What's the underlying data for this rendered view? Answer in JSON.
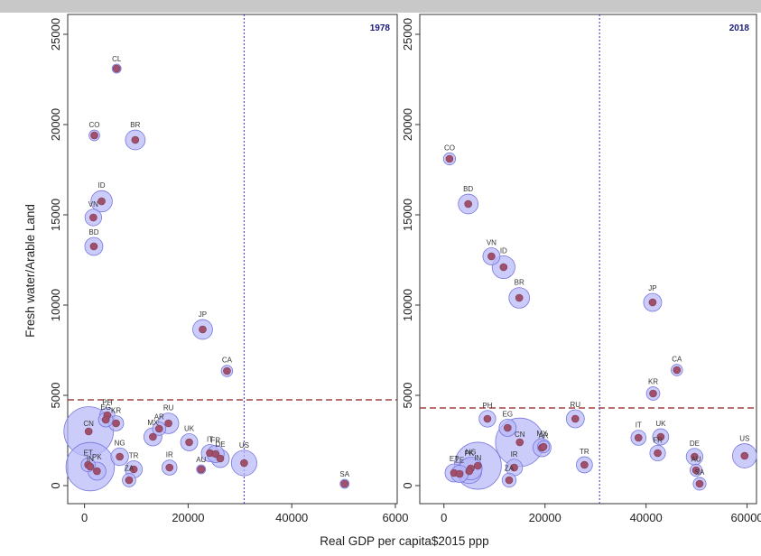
{
  "chart_data": {
    "type": "scatter",
    "xlabel": "Real GDP per capita$2015 ppp",
    "ylabel": "Fresh water/Arable Land",
    "colors": {
      "bubble_fill": "#b8b8f8",
      "bubble_stroke": "#7777dd",
      "point": "#a0506c",
      "threshold_line": "#a04040",
      "reference_line": "#3030c8"
    },
    "panels": [
      {
        "title": "1978",
        "xlim": [
          -1500,
          60000
        ],
        "ylim": [
          -500,
          26000
        ],
        "xticks": [
          "0",
          "20000",
          "40000",
          "6000"
        ],
        "yticks": [
          "0",
          "5000",
          "10000",
          "15000",
          "20000",
          "25000"
        ],
        "hline": 4750,
        "vline": 30800,
        "points": [
          {
            "label": "CL",
            "x": 6200,
            "y": 23100,
            "size": 0.25
          },
          {
            "label": "CO",
            "x": 1900,
            "y": 19400,
            "size": 0.35
          },
          {
            "label": "BR",
            "x": 9800,
            "y": 19150,
            "size": 1.2
          },
          {
            "label": "ID",
            "x": 3300,
            "y": 15750,
            "size": 1.4
          },
          {
            "label": "VN",
            "x": 1700,
            "y": 14850,
            "size": 0.85
          },
          {
            "label": "BD",
            "x": 1800,
            "y": 13250,
            "size": 1.0
          },
          {
            "label": "JP",
            "x": 22800,
            "y": 8650,
            "size": 1.2
          },
          {
            "label": "CA",
            "x": 27500,
            "y": 6350,
            "size": 0.4
          },
          {
            "label": "PH",
            "x": 4400,
            "y": 3900,
            "size": 0.7
          },
          {
            "label": "EG",
            "x": 4100,
            "y": 3650,
            "size": 0.65
          },
          {
            "label": "KR",
            "x": 6100,
            "y": 3450,
            "size": 0.7
          },
          {
            "label": "CN",
            "x": 800,
            "y": 3000,
            "size": 7.5
          },
          {
            "label": "RU",
            "x": 16200,
            "y": 3450,
            "size": 1.3
          },
          {
            "label": "AR",
            "x": 14400,
            "y": 3150,
            "size": 0.55
          },
          {
            "label": "MX",
            "x": 13200,
            "y": 2700,
            "size": 1.0
          },
          {
            "label": "UK",
            "x": 20200,
            "y": 2400,
            "size": 0.9
          },
          {
            "label": "IT",
            "x": 24200,
            "y": 1800,
            "size": 0.9
          },
          {
            "label": "FR",
            "x": 25300,
            "y": 1750,
            "size": 0.9
          },
          {
            "label": "DE",
            "x": 26200,
            "y": 1500,
            "size": 1.0
          },
          {
            "label": "NG",
            "x": 6800,
            "y": 1600,
            "size": 0.95
          },
          {
            "label": "TR",
            "x": 9500,
            "y": 900,
            "size": 0.9
          },
          {
            "label": "ZA",
            "x": 8600,
            "y": 300,
            "size": 0.55
          },
          {
            "label": "IR",
            "x": 16400,
            "y": 1000,
            "size": 0.7
          },
          {
            "label": "AU",
            "x": 22500,
            "y": 900,
            "size": 0.25
          },
          {
            "label": "US",
            "x": 30800,
            "y": 1250,
            "size": 2.0
          },
          {
            "label": "ET",
            "x": 700,
            "y": 1150,
            "size": 0.6
          },
          {
            "label": "IN",
            "x": 1100,
            "y": 1050,
            "size": 7.2
          },
          {
            "label": "PK",
            "x": 2400,
            "y": 800,
            "size": 1.0
          },
          {
            "label": "SA",
            "x": 50200,
            "y": 100,
            "size": 0.25
          }
        ]
      },
      {
        "title": "2018",
        "xlim": [
          -3000,
          61500
        ],
        "ylim": [
          -500,
          26000
        ],
        "xticks": [
          "0",
          "20000",
          "40000",
          "60000"
        ],
        "yticks": [
          "0",
          "5000",
          "10000",
          "15000",
          "20000",
          "25000"
        ],
        "hline": 4300,
        "vline": 30800,
        "points": [
          {
            "label": "CO",
            "x": 1100,
            "y": 18100,
            "size": 0.45
          },
          {
            "label": "BD",
            "x": 4800,
            "y": 15600,
            "size": 1.2
          },
          {
            "label": "VN",
            "x": 9400,
            "y": 12700,
            "size": 0.9
          },
          {
            "label": "ID",
            "x": 11800,
            "y": 12100,
            "size": 1.6
          },
          {
            "label": "BR",
            "x": 14900,
            "y": 10400,
            "size": 1.3
          },
          {
            "label": "JP",
            "x": 41300,
            "y": 10150,
            "size": 1.0
          },
          {
            "label": "CA",
            "x": 46100,
            "y": 6400,
            "size": 0.4
          },
          {
            "label": "KR",
            "x": 41400,
            "y": 5100,
            "size": 0.55
          },
          {
            "label": "PH",
            "x": 8600,
            "y": 3700,
            "size": 0.85
          },
          {
            "label": "RU",
            "x": 26000,
            "y": 3700,
            "size": 1.0
          },
          {
            "label": "EG",
            "x": 12600,
            "y": 3200,
            "size": 0.9
          },
          {
            "label": "CN",
            "x": 15000,
            "y": 2400,
            "size": 7.2
          },
          {
            "label": "MX",
            "x": 19400,
            "y": 2100,
            "size": 1.0
          },
          {
            "label": "AR",
            "x": 19700,
            "y": 2150,
            "size": 0.45
          },
          {
            "label": "IT",
            "x": 38500,
            "y": 2650,
            "size": 0.7
          },
          {
            "label": "UK",
            "x": 42900,
            "y": 2700,
            "size": 0.8
          },
          {
            "label": "FR",
            "x": 42300,
            "y": 1800,
            "size": 0.75
          },
          {
            "label": "DE",
            "x": 49600,
            "y": 1600,
            "size": 0.85
          },
          {
            "label": "AU",
            "x": 49900,
            "y": 850,
            "size": 0.45
          },
          {
            "label": "SA",
            "x": 50600,
            "y": 100,
            "size": 0.5
          },
          {
            "label": "US",
            "x": 59500,
            "y": 1650,
            "size": 1.8
          },
          {
            "label": "TR",
            "x": 27800,
            "y": 1150,
            "size": 0.8
          },
          {
            "label": "IR",
            "x": 13900,
            "y": 1000,
            "size": 0.85
          },
          {
            "label": "ZA",
            "x": 12900,
            "y": 300,
            "size": 0.6
          },
          {
            "label": "IN",
            "x": 6700,
            "y": 1100,
            "size": 6.8
          },
          {
            "label": "NG",
            "x": 5300,
            "y": 950,
            "size": 1.6
          },
          {
            "label": "PK",
            "x": 5000,
            "y": 800,
            "size": 1.9
          },
          {
            "label": "ET",
            "x": 2000,
            "y": 700,
            "size": 1.0
          },
          {
            "label": "ZE",
            "x": 3100,
            "y": 650,
            "size": 0.9
          }
        ]
      }
    ]
  }
}
